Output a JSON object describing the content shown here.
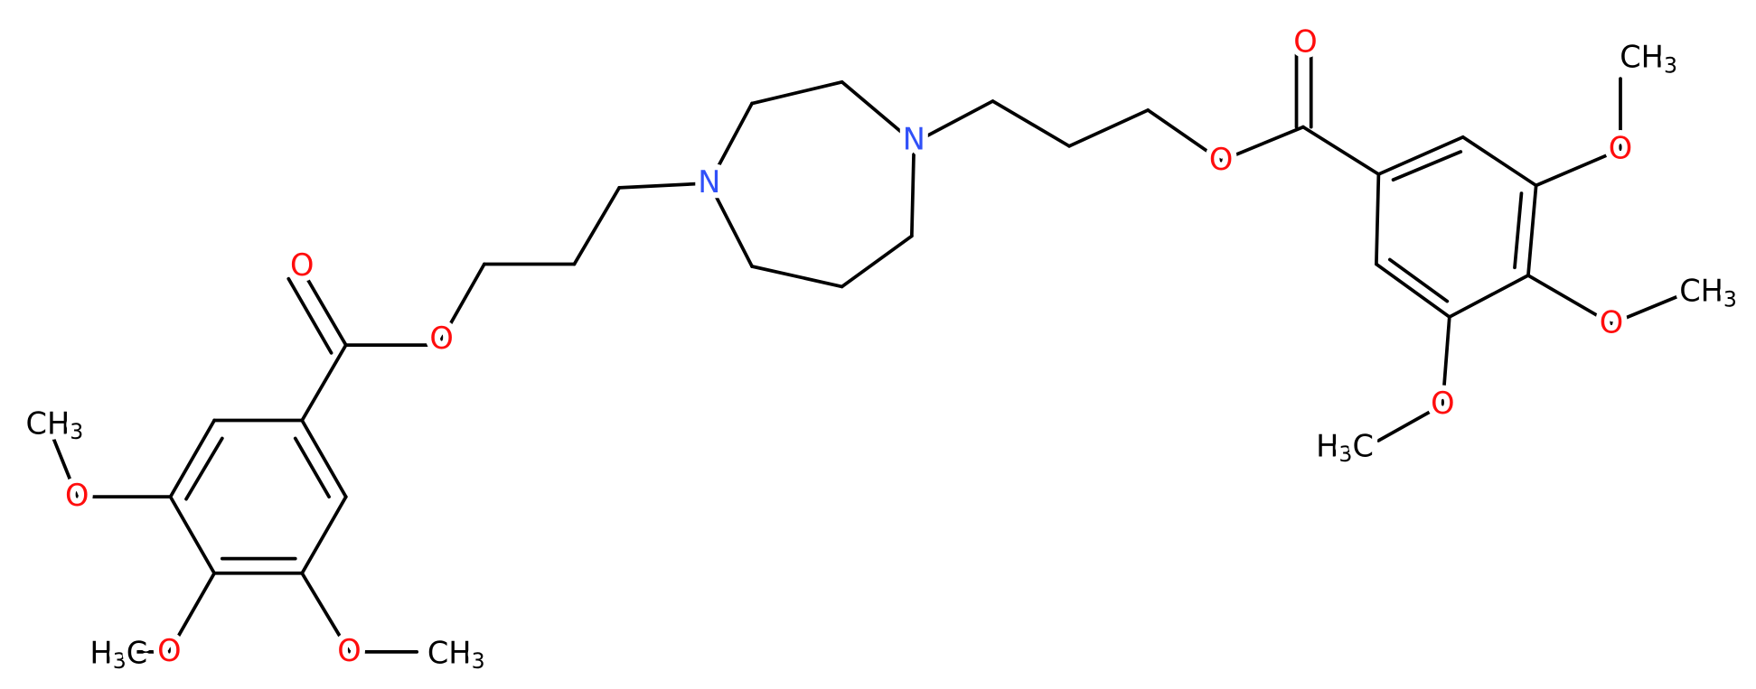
{
  "atoms": [
    {
      "label": "O"
    },
    {
      "label": "O"
    },
    {
      "label": "N"
    },
    {
      "label": "N"
    },
    {
      "label": "O"
    },
    {
      "label": "O"
    },
    {
      "label": "O"
    },
    {
      "label": "CH",
      "sub": "3"
    },
    {
      "label": "O"
    },
    {
      "label": "CH",
      "sub": "3"
    },
    {
      "label": "O"
    },
    {
      "label": "H",
      "sub": "3",
      "tail": "C"
    },
    {
      "label": "O"
    },
    {
      "label": "CH",
      "sub": "3"
    },
    {
      "label": "O"
    },
    {
      "label": "H",
      "sub": "3",
      "tail": "C"
    },
    {
      "label": "O"
    },
    {
      "label": "CH",
      "sub": "3"
    }
  ]
}
